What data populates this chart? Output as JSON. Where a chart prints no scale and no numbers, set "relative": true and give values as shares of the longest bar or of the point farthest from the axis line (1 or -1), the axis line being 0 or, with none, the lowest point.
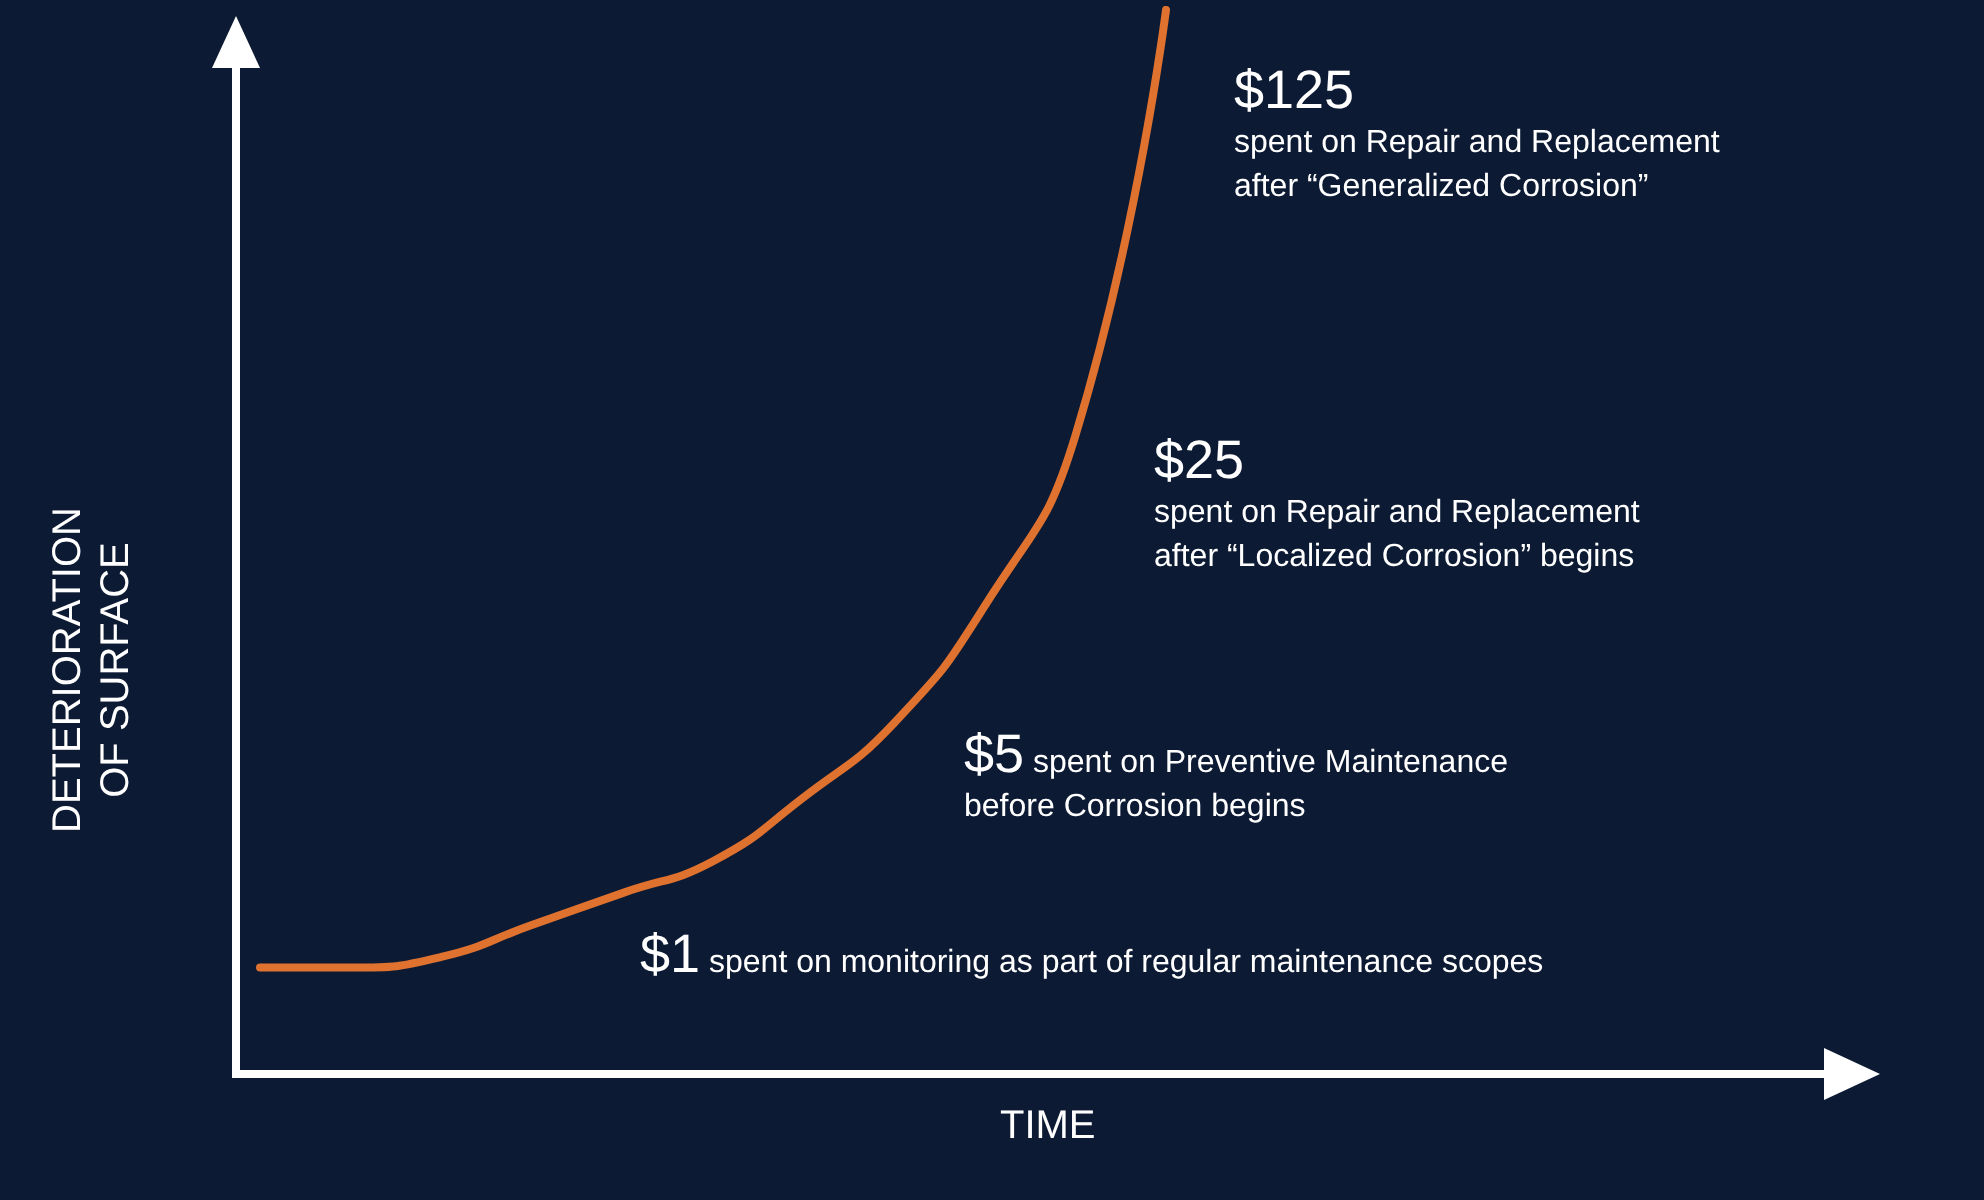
{
  "chart_data": {
    "type": "line",
    "relative": true,
    "xlabel": "TIME",
    "ylabel": "DETERIORATION\nOF SURFACE",
    "categories": [
      null,
      null,
      null,
      null,
      null,
      null,
      null,
      null,
      null,
      null,
      null
    ],
    "series": [
      {
        "color": "#e0722f",
        "values": [
          0.1,
          0.1,
          0.11,
          0.14,
          0.17,
          0.2,
          0.26,
          0.33,
          0.44,
          0.6,
          1
        ]
      }
    ],
    "annotations": [
      "$1 spent on monitoring as part of regular maintenance scopes",
      "$5 spent on Preventive Maintenance\nbefore Corrosion begins",
      "$25\nspent on Repair and Replacement\nafter “Localized Corrosion” begins",
      "$125\nspent on Repair and Replacement\nafter “Generalized Corrosion”"
    ],
    "grid": false
  }
}
